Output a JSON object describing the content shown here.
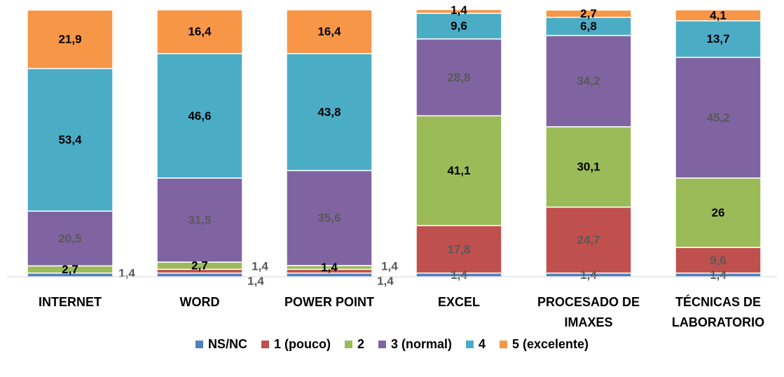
{
  "chart_data": {
    "type": "bar",
    "stacked": true,
    "orientation": "vertical",
    "categories": [
      [
        "INTERNET"
      ],
      [
        "WORD"
      ],
      [
        "POWER POINT"
      ],
      [
        "EXCEL"
      ],
      [
        "PROCESADO DE",
        "IMAXES"
      ],
      [
        "TÉCNICAS DE",
        "LABORATORIO"
      ]
    ],
    "series": [
      {
        "name": "NS/NC",
        "color": "#4F81BD",
        "values": [
          1.4,
          1.4,
          1.4,
          1.4,
          1.4,
          1.4
        ],
        "labels": [
          "1,4",
          "1,4",
          "1,4",
          "1,4",
          "1,4",
          "1,4"
        ]
      },
      {
        "name": "1 (pouco)",
        "color": "#C0504D",
        "values": [
          0,
          1.4,
          1.4,
          17.8,
          24.7,
          9.6
        ],
        "labels": [
          "",
          "1,4",
          "1,4",
          "17,8",
          "24,7",
          "9,6"
        ]
      },
      {
        "name": "2",
        "color": "#9BBB59",
        "values": [
          2.7,
          2.7,
          1.4,
          41.1,
          30.1,
          26
        ],
        "labels": [
          "2,7",
          "2,7",
          "1,4",
          "41,1",
          "30,1",
          "26"
        ]
      },
      {
        "name": "3 (normal)",
        "color": "#8064A2",
        "values": [
          20.5,
          31.5,
          35.6,
          28.8,
          34.2,
          45.2
        ],
        "labels": [
          "20,5",
          "31,5",
          "35,6",
          "28,8",
          "34,2",
          "45,2"
        ]
      },
      {
        "name": "4",
        "color": "#4BACC6",
        "values": [
          53.4,
          46.6,
          43.8,
          9.6,
          6.8,
          13.7
        ],
        "labels": [
          "53,4",
          "46,6",
          "43,8",
          "9,6",
          "6,8",
          "13,7"
        ]
      },
      {
        "name": "5 (excelente)",
        "color": "#F79646",
        "values": [
          21.9,
          16.4,
          16.4,
          1.4,
          2.7,
          4.1
        ],
        "labels": [
          "21,9",
          "16,4",
          "16,4",
          "1,4",
          "2,7",
          "4,1"
        ]
      }
    ],
    "ylim": [
      0,
      100
    ],
    "grid": false,
    "legend_position": "bottom"
  }
}
